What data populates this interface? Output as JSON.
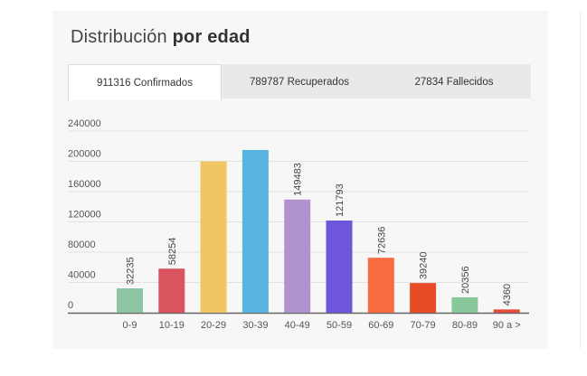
{
  "card": {
    "title_regular": "Distribución ",
    "title_bold": "por edad"
  },
  "tabs": [
    {
      "label": "911316 Confirmados",
      "active": true
    },
    {
      "label": "789787 Recuperados",
      "active": false
    },
    {
      "label": "27834 Fallecidos",
      "active": false
    }
  ],
  "chart_data": {
    "type": "bar",
    "title": "",
    "xlabel": "",
    "ylabel": "",
    "ylim": [
      0,
      240000
    ],
    "yticks": [
      0,
      40000,
      80000,
      120000,
      160000,
      200000,
      240000
    ],
    "ytick_labels": [
      "0",
      "40000",
      "80000",
      "120000",
      "160000",
      "200000",
      "240000"
    ],
    "grid": true,
    "categories": [
      "0-9",
      "10-19",
      "20-29",
      "30-39",
      "40-49",
      "50-59",
      "60-69",
      "70-79",
      "80-89",
      "90 a >"
    ],
    "values": [
      32235,
      58254,
      200000,
      215000,
      149483,
      121793,
      72636,
      39240,
      20356,
      4360
    ],
    "data_labels": [
      "32235",
      "58254",
      "",
      "",
      "149483",
      "121793",
      "72636",
      "39240",
      "20356",
      "4360"
    ],
    "colors": [
      "#8dc4a4",
      "#d9545e",
      "#f0c662",
      "#5ab4e2",
      "#b092ce",
      "#6e55d9",
      "#f86c3f",
      "#e64d27",
      "#87c79a",
      "#e44d3c"
    ]
  }
}
